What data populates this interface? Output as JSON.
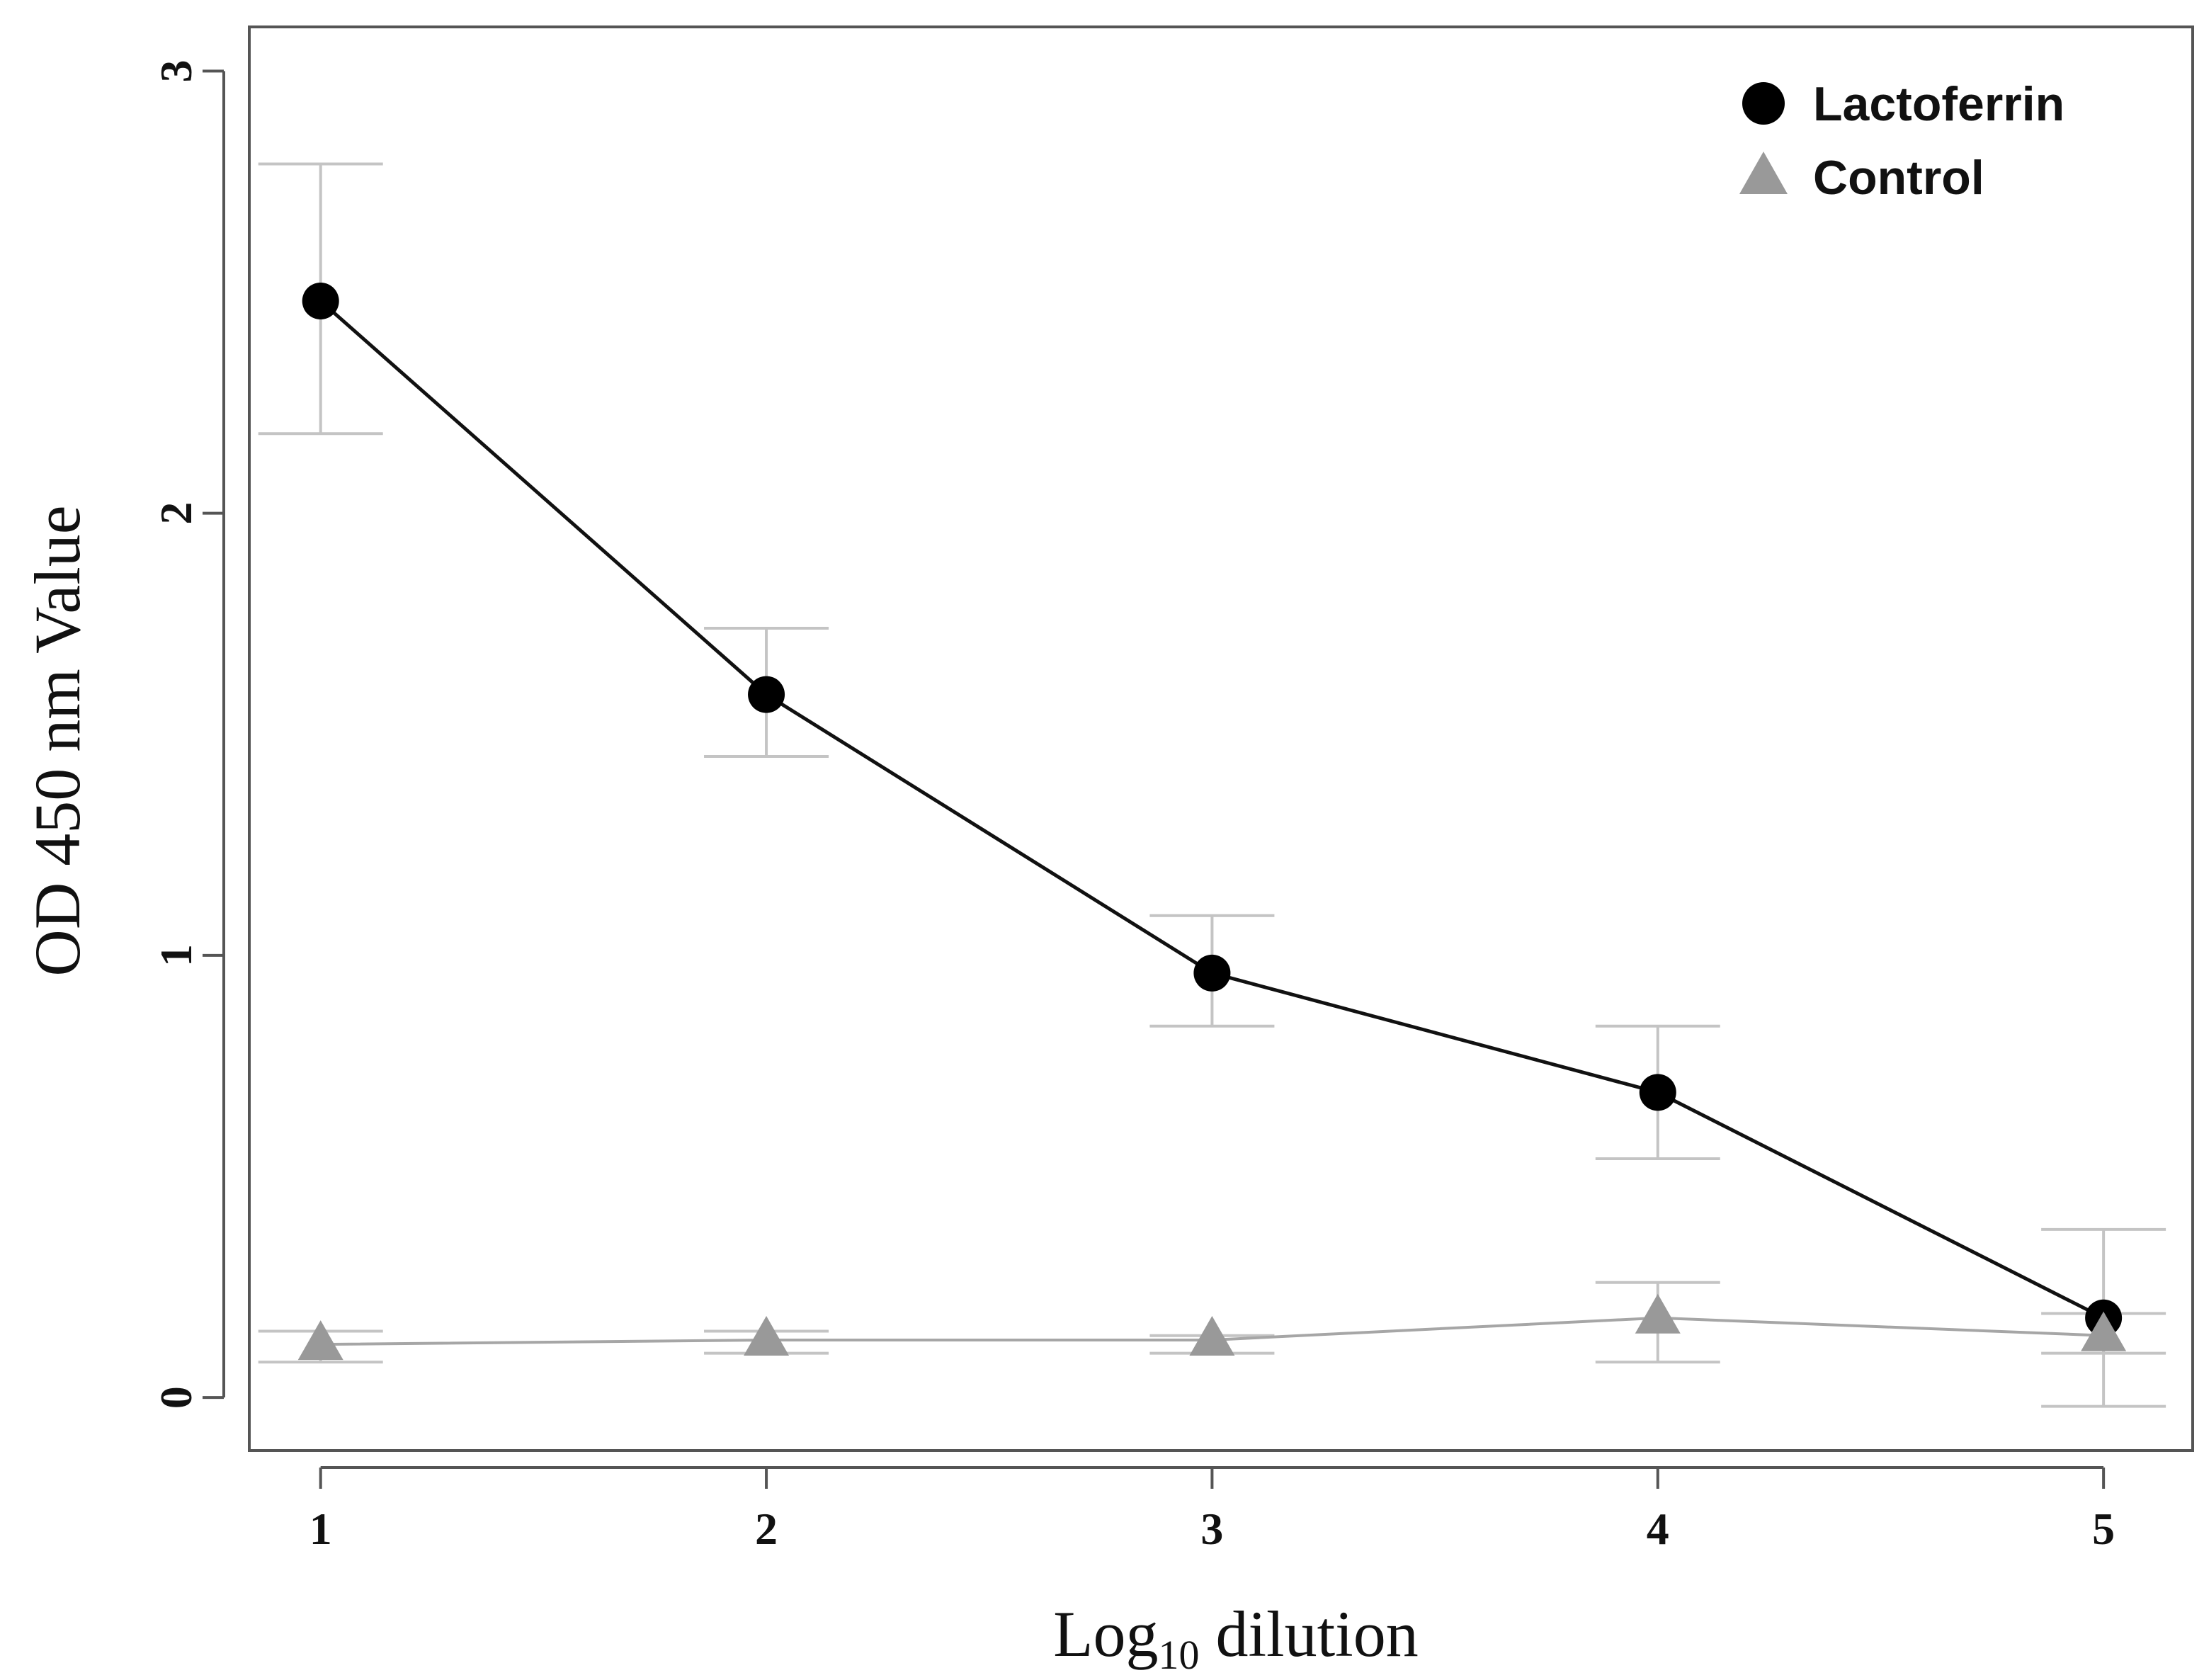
{
  "chart_data": {
    "type": "line",
    "title": "",
    "xlabel": {
      "base": "Log",
      "subscript": "10",
      "rest": " dilution"
    },
    "ylabel": "OD 450 nm Value",
    "x": [
      1,
      2,
      3,
      4,
      5
    ],
    "x_tick_labels": [
      "1",
      "2",
      "3",
      "4",
      "5"
    ],
    "y_ticks": [
      0,
      1,
      2,
      3
    ],
    "y_tick_labels": [
      "0",
      "1",
      "2",
      "3"
    ],
    "xlim": [
      0.84,
      5.2
    ],
    "ylim": [
      -0.12,
      3.1
    ],
    "grid": false,
    "legend_position": "top-right",
    "series": [
      {
        "name": "Lactoferrin",
        "marker": "circle",
        "color": "#000000",
        "line_color": "#111111",
        "values": [
          2.48,
          1.59,
          0.96,
          0.69,
          0.18
        ],
        "error_low": [
          2.18,
          1.45,
          0.84,
          0.54,
          -0.02
        ],
        "error_high": [
          2.79,
          1.74,
          1.09,
          0.84,
          0.38
        ]
      },
      {
        "name": "Control",
        "marker": "triangle",
        "color": "#999999",
        "line_color": "#a6a6a6",
        "values": [
          0.12,
          0.13,
          0.13,
          0.18,
          0.14
        ],
        "error_low": [
          0.08,
          0.1,
          0.1,
          0.08,
          0.1
        ],
        "error_high": [
          0.15,
          0.15,
          0.14,
          0.26,
          0.19
        ]
      }
    ],
    "error_bar_color": "#c4c4c4"
  }
}
